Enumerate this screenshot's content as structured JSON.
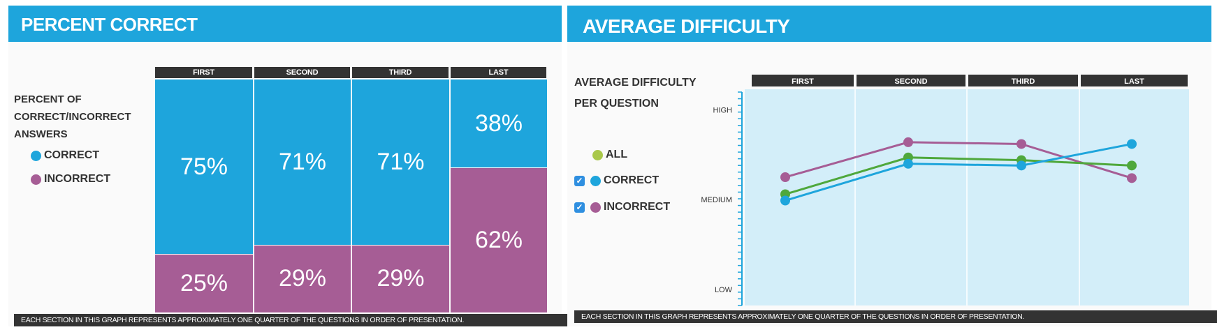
{
  "left_panel": {
    "title": "PERCENT CORRECT",
    "legend_title": [
      "PERCENT OF",
      "CORRECT/INCORRECT",
      "ANSWERS"
    ],
    "legend": [
      {
        "label": "CORRECT",
        "color": "#1ea5dc"
      },
      {
        "label": "INCORRECT",
        "color": "#a65d95"
      }
    ],
    "footnote": "EACH SECTION IN THIS GRAPH REPRESENTS APPROXIMATELY ONE QUARTER OF THE QUESTIONS IN ORDER OF PRESENTATION."
  },
  "right_panel": {
    "title": "AVERAGE DIFFICULTY",
    "legend_title": [
      "AVERAGE DIFFICULTY",
      "PER QUESTION"
    ],
    "legend": [
      {
        "label": "ALL",
        "color": "#8fbe3a",
        "checkbox": false
      },
      {
        "label": "CORRECT",
        "color": "#1ea5dc",
        "checkbox": true,
        "checked": true
      },
      {
        "label": "INCORRECT",
        "color": "#a65d95",
        "checkbox": true,
        "checked": true
      }
    ],
    "footnote": "EACH SECTION IN THIS GRAPH REPRESENTS APPROXIMATELY ONE QUARTER OF THE QUESTIONS IN ORDER OF PRESENTATION."
  },
  "colors": {
    "header": "#1ea5dc",
    "correct": "#1ea5dc",
    "incorrect": "#a65d95",
    "all": "#4fa83c",
    "plot_bg": "#d3eef9"
  },
  "chart_data": [
    {
      "type": "bar",
      "title": "PERCENT CORRECT",
      "categories": [
        "FIRST",
        "SECOND",
        "THIRD",
        "LAST"
      ],
      "series": [
        {
          "name": "CORRECT",
          "values": [
            75,
            71,
            71,
            38
          ],
          "labels": [
            "75%",
            "71%",
            "71%",
            "38%"
          ]
        },
        {
          "name": "INCORRECT",
          "values": [
            25,
            29,
            29,
            62
          ],
          "labels": [
            "25%",
            "29%",
            "29%",
            "62%"
          ]
        }
      ],
      "ylim": [
        0,
        100
      ],
      "stacked": true
    },
    {
      "type": "line",
      "title": "AVERAGE DIFFICULTY",
      "categories": [
        "FIRST",
        "SECOND",
        "THIRD",
        "LAST"
      ],
      "y_tick_labels": [
        "HIGH",
        "MEDIUM",
        "LOW"
      ],
      "y_tick_values": [
        1,
        0,
        -1
      ],
      "ylim": [
        -1.18,
        1.23
      ],
      "series": [
        {
          "name": "ALL",
          "values": [
            0.06,
            0.47,
            0.44,
            0.38
          ]
        },
        {
          "name": "CORRECT",
          "values": [
            -0.01,
            0.4,
            0.38,
            0.62
          ]
        },
        {
          "name": "INCORRECT",
          "values": [
            0.25,
            0.64,
            0.62,
            0.24
          ]
        }
      ]
    }
  ]
}
